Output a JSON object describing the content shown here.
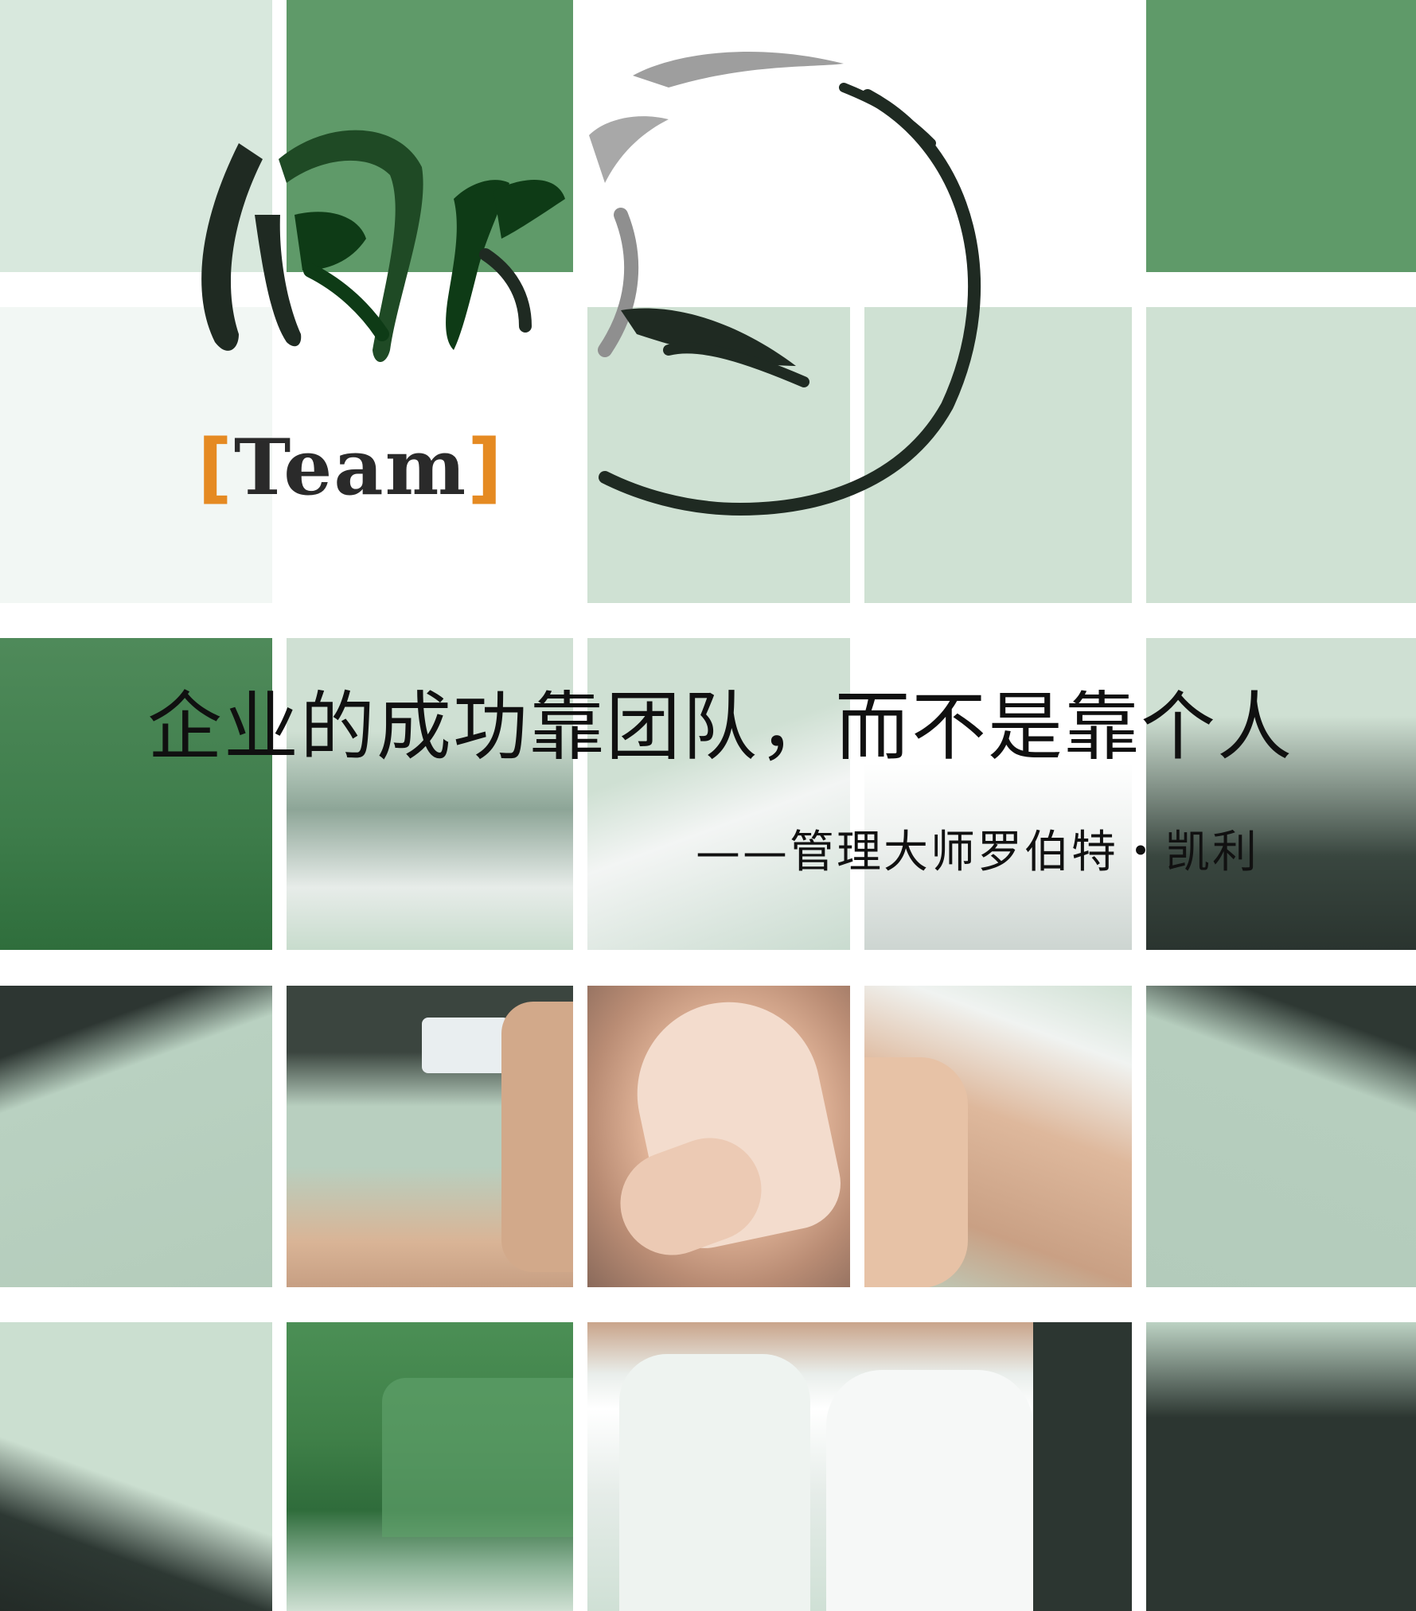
{
  "logo": {
    "brand_text": "Team",
    "bracket_open": "[",
    "bracket_close": "]",
    "icon": "calligraphy-circle-logo-icon",
    "accent_color": "#e58a22",
    "ink_color": "#1f2a22"
  },
  "quote": {
    "text": "企业的成功靠团队，而不是靠个人",
    "attribution": "——管理大师罗伯特・凯利"
  },
  "palette": {
    "green": "#5f9a69",
    "mint": "#cfe1d3",
    "pale": "#d8e8dd",
    "white": "#ffffff"
  }
}
